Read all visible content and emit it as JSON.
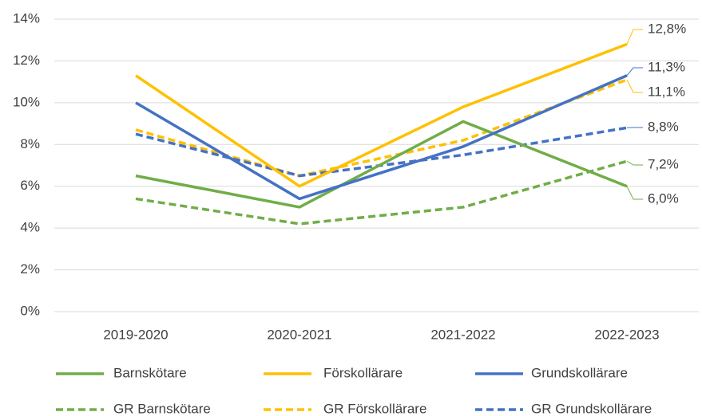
{
  "chart_data": {
    "type": "line",
    "categories": [
      "2019-2020",
      "2020-2021",
      "2021-2022",
      "2022-2023"
    ],
    "series": [
      {
        "name": "Barnskötare",
        "color": "#70ad47",
        "dashed": false,
        "values": [
          6.5,
          5.0,
          9.1,
          6.0
        ],
        "value_labels": [
          null,
          null,
          null,
          "6,0%"
        ]
      },
      {
        "name": "Förskollärare",
        "color": "#ffc000",
        "dashed": false,
        "values": [
          11.3,
          6.0,
          9.8,
          12.8
        ],
        "value_labels": [
          null,
          null,
          null,
          "12,8%"
        ]
      },
      {
        "name": "Grundskollärare",
        "color": "#4472c4",
        "dashed": false,
        "values": [
          10.0,
          5.4,
          7.9,
          11.3
        ],
        "value_labels": [
          null,
          null,
          null,
          "11,3%"
        ]
      },
      {
        "name": "GR Barnskötare",
        "color": "#70ad47",
        "dashed": true,
        "values": [
          5.4,
          4.2,
          5.0,
          7.2
        ],
        "value_labels": [
          null,
          null,
          null,
          "7,2%"
        ]
      },
      {
        "name": "GR Förskollärare",
        "color": "#ffc000",
        "dashed": true,
        "values": [
          8.7,
          6.5,
          8.2,
          11.1
        ],
        "value_labels": [
          null,
          null,
          null,
          "11,1%"
        ]
      },
      {
        "name": "GR Grundskollärare",
        "color": "#4472c4",
        "dashed": true,
        "values": [
          8.5,
          6.5,
          7.5,
          8.8
        ],
        "value_labels": [
          null,
          null,
          null,
          "8,8%"
        ]
      }
    ],
    "ylim": [
      0,
      14
    ],
    "yticks": [
      {
        "value": 0,
        "label": "0%"
      },
      {
        "value": 2,
        "label": "2%"
      },
      {
        "value": 4,
        "label": "4%"
      },
      {
        "value": 6,
        "label": "6%"
      },
      {
        "value": 8,
        "label": "8%"
      },
      {
        "value": 10,
        "label": "10%"
      },
      {
        "value": 12,
        "label": "12%"
      },
      {
        "value": 14,
        "label": "14%"
      }
    ],
    "grid": true,
    "legend": "bottom"
  }
}
